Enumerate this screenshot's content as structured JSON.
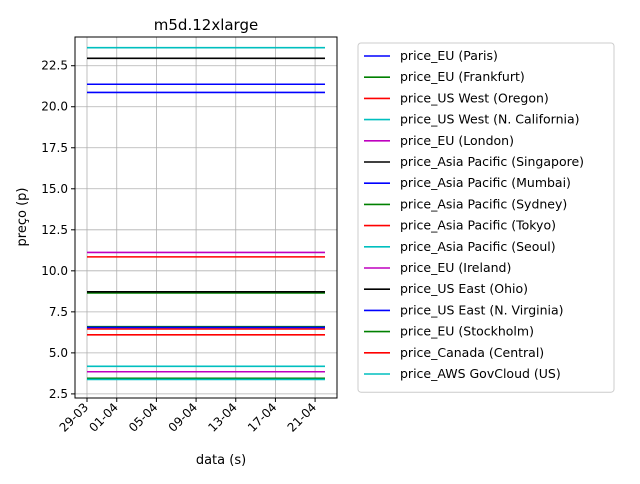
{
  "chart_data": {
    "type": "line",
    "title": "m5d.12xlarge",
    "xlabel": "data (s)",
    "ylabel": "preço (p)",
    "x_start": "29-03",
    "x_end": "22-04",
    "x_ticks": [
      "29-03",
      "01-04",
      "05-04",
      "09-04",
      "13-04",
      "17-04",
      "21-04"
    ],
    "y_ticks": [
      "2.5",
      "5.0",
      "7.5",
      "10.0",
      "12.5",
      "15.0",
      "17.5",
      "20.0",
      "22.5"
    ],
    "ylim": [
      2.25,
      24.25
    ],
    "grid": true,
    "legend_position": "outside-right",
    "series": [
      {
        "name": "price_EU (Paris)",
        "color": "#0000ff",
        "values": [
          20.87,
          20.87
        ]
      },
      {
        "name": "price_EU (Frankfurt)",
        "color": "#008000",
        "values": [
          6.6,
          6.6
        ]
      },
      {
        "name": "price_US West (Oregon)",
        "color": "#ff0000",
        "values": [
          6.46,
          6.46
        ]
      },
      {
        "name": "price_US West (N. California)",
        "color": "#00bfbf",
        "values": [
          23.6,
          23.6
        ]
      },
      {
        "name": "price_EU (London)",
        "color": "#bf00bf",
        "values": [
          11.12,
          11.12
        ]
      },
      {
        "name": "price_Asia Pacific (Singapore)",
        "color": "#000000",
        "values": [
          22.95,
          22.95
        ]
      },
      {
        "name": "price_Asia Pacific (Mumbai)",
        "color": "#0000ff",
        "values": [
          21.37,
          21.37
        ]
      },
      {
        "name": "price_Asia Pacific (Sydney)",
        "color": "#008000",
        "values": [
          8.65,
          8.65
        ]
      },
      {
        "name": "price_Asia Pacific (Tokyo)",
        "color": "#ff0000",
        "values": [
          10.85,
          10.85
        ]
      },
      {
        "name": "price_Asia Pacific (Seoul)",
        "color": "#00bfbf",
        "values": [
          4.18,
          4.18
        ]
      },
      {
        "name": "price_EU (Ireland)",
        "color": "#bf00bf",
        "values": [
          3.85,
          3.85
        ]
      },
      {
        "name": "price_US East (Ohio)",
        "color": "#000000",
        "values": [
          8.72,
          8.72
        ]
      },
      {
        "name": "price_US East (N. Virginia)",
        "color": "#0000ff",
        "values": [
          6.55,
          6.55
        ]
      },
      {
        "name": "price_EU (Stockholm)",
        "color": "#008000",
        "values": [
          3.45,
          3.45
        ]
      },
      {
        "name": "price_Canada (Central)",
        "color": "#ff0000",
        "values": [
          6.1,
          6.1
        ]
      },
      {
        "name": "price_AWS GovCloud (US)",
        "color": "#00bfbf",
        "values": [
          3.38,
          3.38
        ]
      }
    ]
  }
}
